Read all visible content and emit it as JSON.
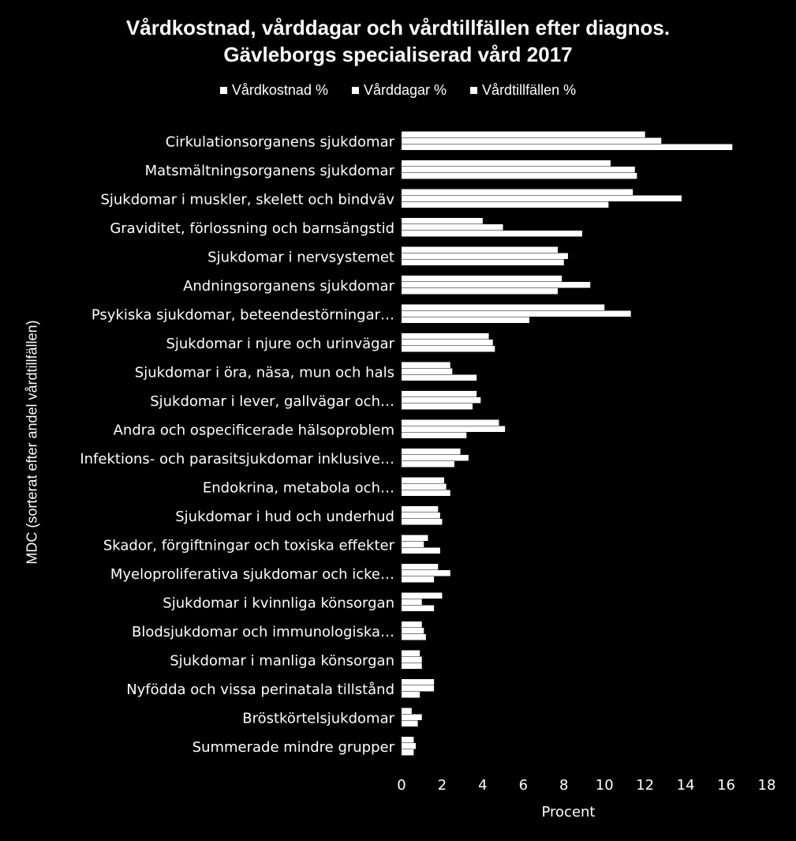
{
  "chart_data": {
    "type": "bar",
    "orientation": "horizontal",
    "title_line1": "Vårdkostnad, vårddagar och vårdtillfällen efter diagnos.",
    "title_line2": "Gävleborgs specialiserad vård 2017",
    "xlabel": "Procent",
    "ylabel": "MDC (sorterat efter andel vårdtillfällen)",
    "xlim": [
      0,
      18
    ],
    "xticks": [
      "0",
      "2",
      "4",
      "6",
      "8",
      "10",
      "12",
      "14",
      "16",
      "18"
    ],
    "grid": false,
    "legend_position": "top",
    "bar_color": "#ffffff",
    "categories": [
      "Cirkulationsorganens sjukdomar",
      "Matsmältningsorganens sjukdomar",
      "Sjukdomar i muskler, skelett och bindväv",
      "Graviditet, förlossning och barnsängstid",
      "Sjukdomar i nervsystemet",
      "Andningsorganens sjukdomar",
      "Psykiska sjukdomar, beteendestörningar…",
      "Sjukdomar i njure och urinvägar",
      "Sjukdomar i öra, näsa, mun och hals",
      "Sjukdomar i lever, gallvägar och…",
      "Andra och ospecificerade hälsoproblem",
      "Infektions- och parasitsjukdomar inklusive…",
      "Endokrina, metabola och…",
      "Sjukdomar i hud och underhud",
      "Skador, förgiftningar och toxiska effekter",
      "Myeloproliferativa sjukdomar och icke…",
      "Sjukdomar i kvinnliga könsorgan",
      "Blodsjukdomar och immunologiska…",
      "Sjukdomar i manliga könsorgan",
      "Nyfödda och vissa perinatala tillstånd",
      "Bröstkörtelsjukdomar",
      "Summerade mindre grupper"
    ],
    "series": [
      {
        "name": "Vårdkostnad %",
        "values": [
          12.0,
          10.3,
          11.4,
          4.0,
          7.7,
          7.9,
          10.0,
          4.3,
          2.4,
          3.7,
          4.8,
          2.9,
          2.1,
          1.8,
          1.3,
          1.8,
          2.0,
          1.0,
          0.9,
          1.6,
          0.5,
          0.6
        ]
      },
      {
        "name": "Vårddagar %",
        "values": [
          12.8,
          11.5,
          13.8,
          5.0,
          8.2,
          9.3,
          11.3,
          4.5,
          2.5,
          3.9,
          5.1,
          3.3,
          2.2,
          1.9,
          1.1,
          2.4,
          1.0,
          1.1,
          1.0,
          1.6,
          1.0,
          0.7
        ]
      },
      {
        "name": "Vårdtillfällen %",
        "values": [
          16.3,
          11.6,
          10.2,
          8.9,
          8.0,
          7.7,
          6.3,
          4.6,
          3.7,
          3.5,
          3.2,
          2.6,
          2.4,
          2.0,
          1.9,
          1.6,
          1.6,
          1.2,
          1.0,
          0.9,
          0.8,
          0.6
        ]
      }
    ]
  }
}
